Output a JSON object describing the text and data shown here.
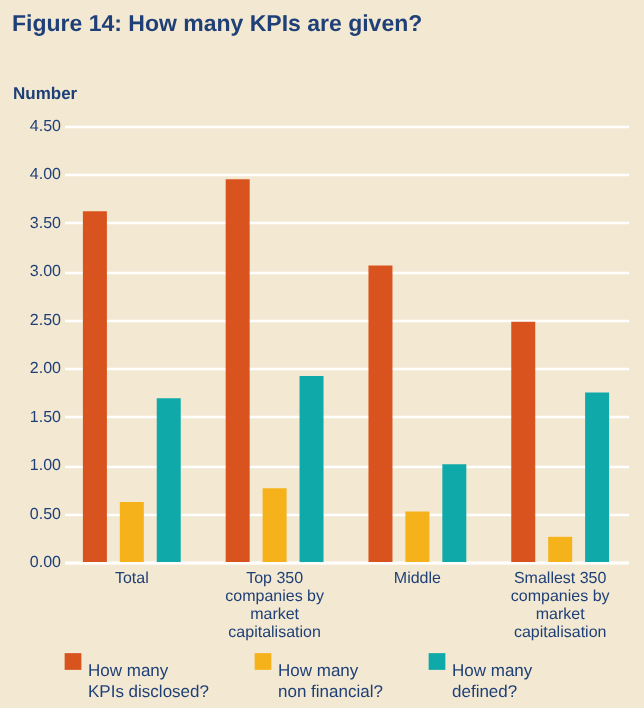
{
  "chart_data": {
    "type": "bar",
    "title": "Figure 14: How many KPIs are given?",
    "ylabel": "Number",
    "categories": [
      "Total",
      "Top 350 companies by market capitalisation",
      "Middle",
      "Smallest 350 companies by market capitalisation"
    ],
    "series": [
      {
        "name": "How many KPIs disclosed?",
        "color": "#d9531e",
        "values": [
          3.62,
          3.95,
          3.06,
          2.48
        ]
      },
      {
        "name": "How many non financial?",
        "color": "#f5b21b",
        "values": [
          0.62,
          0.76,
          0.52,
          0.26
        ]
      },
      {
        "name": "How many defined?",
        "color": "#10a9a9",
        "values": [
          1.69,
          1.92,
          1.01,
          1.75
        ]
      }
    ],
    "ylim": [
      0,
      4.5
    ],
    "yticks": [
      {
        "value": 0,
        "label": "0.00"
      },
      {
        "value": 0.5,
        "label": "0.50"
      },
      {
        "value": 1,
        "label": "1.00"
      },
      {
        "value": 1.5,
        "label": "1.50"
      },
      {
        "value": 2,
        "label": "2.00"
      },
      {
        "value": 2.5,
        "label": "2.50"
      },
      {
        "value": 3,
        "label": "3.00"
      },
      {
        "value": 3.5,
        "label": "3.50"
      },
      {
        "value": 4,
        "label": "4.00"
      },
      {
        "value": 4.5,
        "label": "4.50"
      }
    ],
    "grid": "y",
    "legend": "bottom"
  }
}
